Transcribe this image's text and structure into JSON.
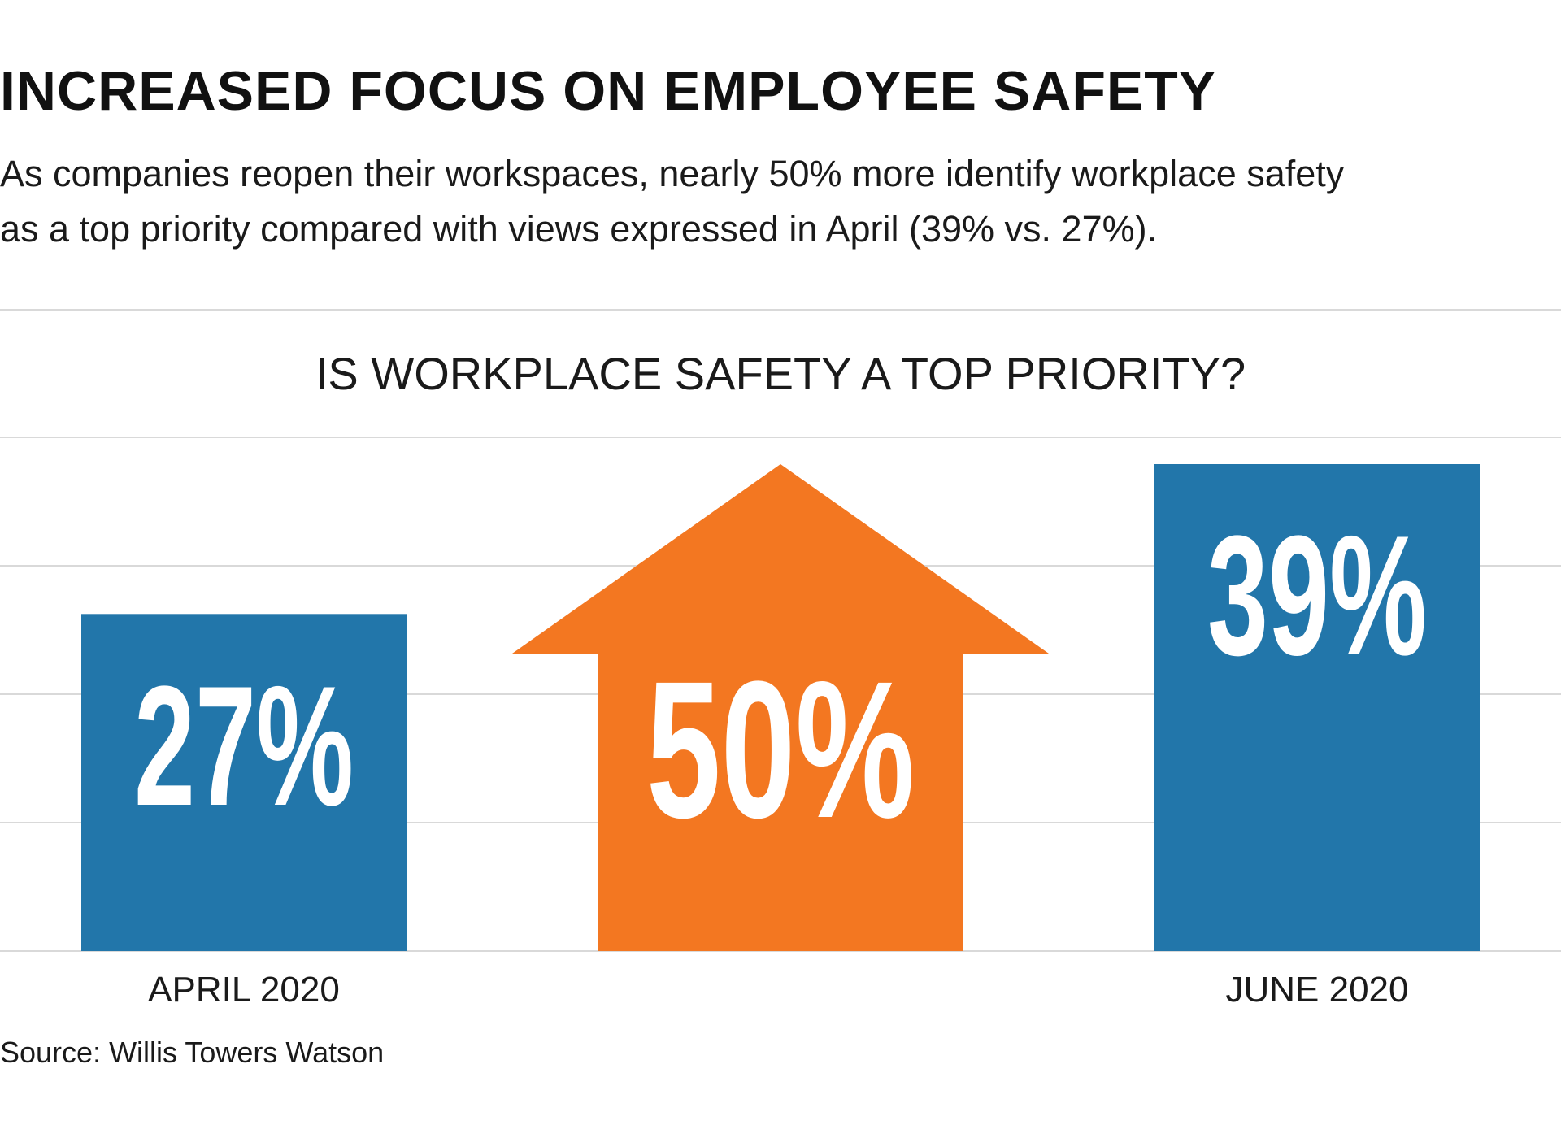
{
  "header": {
    "title": "INCREASED FOCUS ON EMPLOYEE SAFETY",
    "subtitle_line1": "As companies reopen their workspaces, nearly 50% more identify workplace safety",
    "subtitle_line2": "as a top priority compared with views expressed in April (39% vs. 27%)."
  },
  "source": "Source: Willis Towers Watson",
  "colors": {
    "bar": "#2276aa",
    "arrow": "#f37721",
    "text_on_bar": "#ffffff"
  },
  "chart_data": {
    "type": "bar",
    "title": "IS WORKPLACE SAFETY A TOP PRIORITY?",
    "categories": [
      "APRIL 2020",
      "JUNE 2020"
    ],
    "values": [
      27,
      39
    ],
    "value_labels": [
      "27%",
      "39%"
    ],
    "ylim": [
      0,
      39
    ],
    "grid": true,
    "annotation": {
      "shape": "up-arrow",
      "label": "50%"
    }
  }
}
